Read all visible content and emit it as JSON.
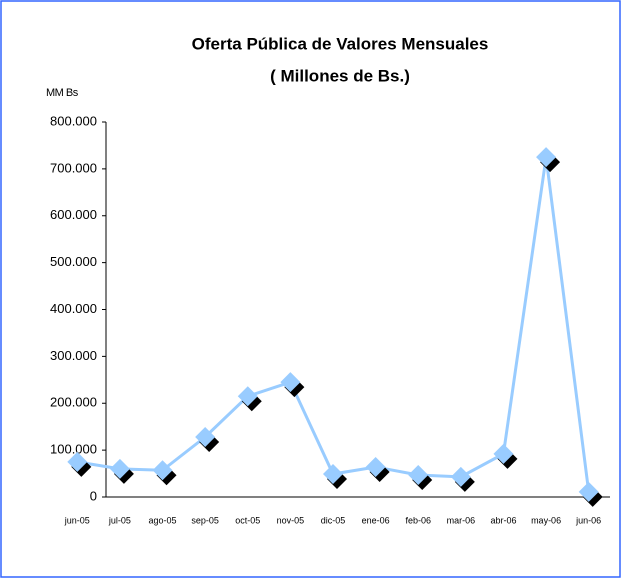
{
  "chart_data": {
    "type": "line",
    "title": "Oferta Pública de Valores Mensuales",
    "subtitle": "( Millones de Bs.)",
    "y_label": "MM Bs",
    "categories": [
      "jun-05",
      "jul-05",
      "ago-05",
      "sep-05",
      "oct-05",
      "nov-05",
      "dic-05",
      "ene-06",
      "feb-06",
      "mar-06",
      "abr-06",
      "may-06",
      "jun-06"
    ],
    "series": [
      {
        "name": "Oferta Pública",
        "color": "#99ccff",
        "values": [
          75000,
          60000,
          57000,
          128000,
          215000,
          245000,
          49000,
          64000,
          47000,
          43000,
          92000,
          725000,
          11000
        ]
      }
    ],
    "ylim": [
      0,
      800000
    ],
    "yticks": [
      0,
      {
        "value": 100000,
        "label": "100.000"
      },
      {
        "value": 200000,
        "label": "200.000"
      },
      {
        "value": 300000,
        "label": "300.000"
      },
      {
        "value": 400000,
        "label": "400.000"
      },
      {
        "value": 500000,
        "label": "500.000"
      },
      {
        "value": 600000,
        "label": "600.000"
      },
      {
        "value": 700000,
        "label": "700.000"
      },
      {
        "value": 800000,
        "label": "800.000"
      }
    ],
    "grid": false
  }
}
